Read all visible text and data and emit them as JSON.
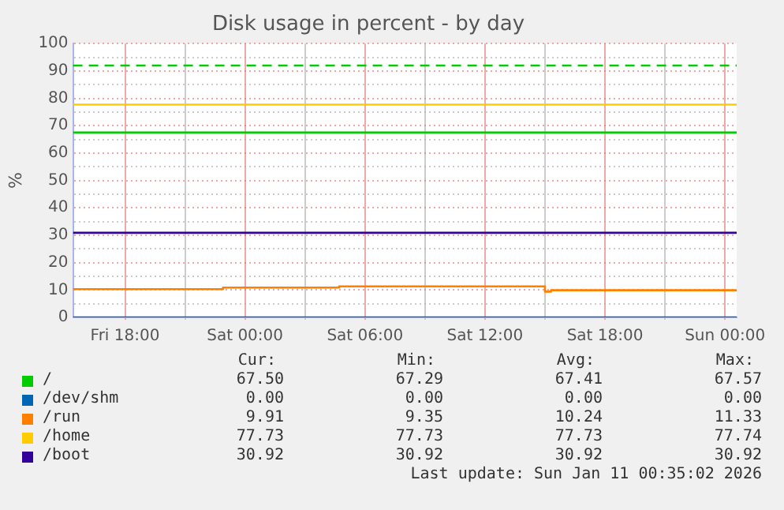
{
  "chart_data": {
    "type": "step",
    "title": "Disk usage in percent - by day",
    "ylabel": "%",
    "xlim": [
      "2026-01-09T15:24",
      "2026-01-11T00:35"
    ],
    "xticks": [
      {
        "value": "2026-01-09T18:00",
        "label": "Fri 18:00"
      },
      {
        "value": "2026-01-09T21:00",
        "label": null
      },
      {
        "value": "2026-01-10T00:00",
        "label": "Sat 00:00"
      },
      {
        "value": "2026-01-10T03:00",
        "label": null
      },
      {
        "value": "2026-01-10T06:00",
        "label": "Sat 06:00"
      },
      {
        "value": "2026-01-10T09:00",
        "label": null
      },
      {
        "value": "2026-01-10T12:00",
        "label": "Sat 12:00"
      },
      {
        "value": "2026-01-10T15:00",
        "label": null
      },
      {
        "value": "2026-01-10T18:00",
        "label": "Sat 18:00"
      },
      {
        "value": "2026-01-10T21:00",
        "label": null
      },
      {
        "value": "2026-01-11T00:00",
        "label": "Sun 00:00"
      }
    ],
    "ylim": [
      0,
      100
    ],
    "yticks": [
      0,
      {
        "value": 5,
        "label": null
      },
      10,
      {
        "value": 15,
        "label": null
      },
      20,
      {
        "value": 25,
        "label": null
      },
      30,
      {
        "value": 35,
        "label": null
      },
      40,
      {
        "value": 45,
        "label": null
      },
      50,
      {
        "value": 55,
        "label": null
      },
      60,
      {
        "value": 65,
        "label": null
      },
      70,
      {
        "value": 75,
        "label": null
      },
      80,
      {
        "value": 85,
        "label": null
      },
      90,
      {
        "value": 95,
        "label": null
      },
      100
    ],
    "grid": true,
    "legend": "bottom",
    "series": [
      {
        "name": "/",
        "color": "#00cc00",
        "x": [
          "2026-01-09T15:24",
          "2026-01-11T00:35"
        ],
        "values": [
          67.4,
          67.5
        ]
      },
      {
        "name": "/dev/shm",
        "color": "#0066b3",
        "x": [
          "2026-01-09T15:24",
          "2026-01-11T00:35"
        ],
        "values": [
          0,
          0
        ]
      },
      {
        "name": "/run",
        "color": "#ff8000",
        "x": [
          "2026-01-09T15:24",
          "2026-01-09T22:54",
          "2026-01-10T04:42",
          "2026-01-10T15:00",
          "2026-01-10T15:18",
          "2026-01-10T16:45",
          "2026-01-11T00:35"
        ],
        "values": [
          9.9,
          10.3,
          10.9,
          11.3,
          9.4,
          9.9,
          9.9
        ]
      },
      {
        "name": "/home",
        "color": "#ffcc00",
        "x": [
          "2026-01-09T15:24",
          "2026-01-11T00:35"
        ],
        "values": [
          77.7,
          77.7
        ]
      },
      {
        "name": "/boot",
        "color": "#330099",
        "x": [
          "2026-01-09T15:24",
          "2026-01-11T00:35"
        ],
        "values": [
          30.9,
          30.9
        ]
      }
    ],
    "ref_lines": [
      {
        "axis": "y",
        "value": 92,
        "label": null,
        "color": "#00cc00",
        "line_style": "dashed"
      }
    ],
    "annotations": [
      "Cur:",
      "Min:",
      "Avg:",
      "Max:",
      "67.50",
      "67.29",
      "67.41",
      "67.57",
      "0.00",
      "0.00",
      "0.00",
      "0.00",
      "9.91",
      "9.35",
      "10.24",
      "11.33",
      "77.73",
      "77.73",
      "77.73",
      "77.74",
      "30.92",
      "30.92",
      "30.92",
      "30.92",
      "Last update: Sun Jan 11 00:35:02 2026"
    ]
  }
}
